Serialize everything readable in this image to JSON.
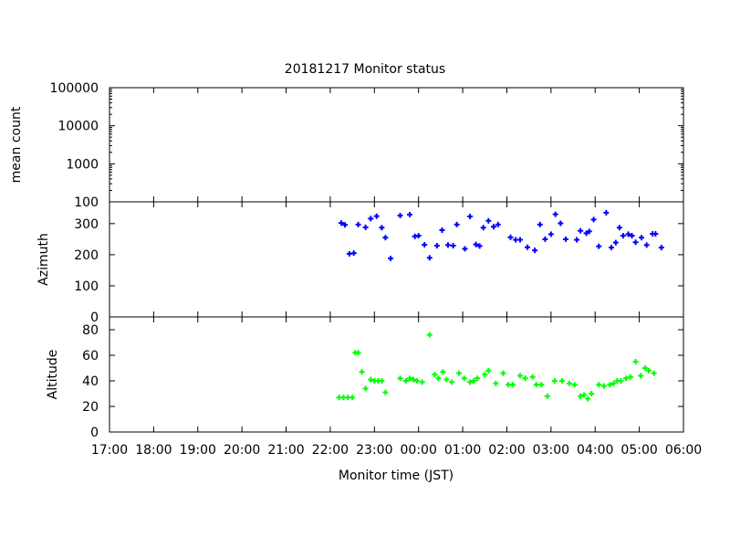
{
  "chart_data": {
    "type": "scatter",
    "title": "20181217 Monitor status",
    "xlabel": "Monitor time (JST)",
    "x_axis": {
      "range": [
        "17:00",
        "06:00"
      ],
      "tick_labels": [
        "17:00",
        "18:00",
        "19:00",
        "20:00",
        "21:00",
        "22:00",
        "23:00",
        "00:00",
        "01:00",
        "02:00",
        "03:00",
        "04:00",
        "05:00",
        "06:00"
      ]
    },
    "panels": [
      {
        "id": "mean-count",
        "ylabel": "mean count",
        "y_scale": "log",
        "ylim": [
          100,
          100000
        ],
        "y_tick_labels": [
          "100",
          "1000",
          "10000",
          "100000"
        ],
        "color": "#0000ff",
        "marker": "plus",
        "points": []
      },
      {
        "id": "azimuth",
        "ylabel": "Azimuth",
        "y_scale": "linear",
        "ylim": [
          0,
          370
        ],
        "y_tick_labels": [
          "0",
          "100",
          "200",
          "300"
        ],
        "color": "#0000ff",
        "marker": "plus",
        "points": [
          [
            "22:15",
            302
          ],
          [
            "22:20",
            296
          ],
          [
            "22:26",
            203
          ],
          [
            "22:32",
            205
          ],
          [
            "22:38",
            297
          ],
          [
            "22:48",
            288
          ],
          [
            "22:55",
            316
          ],
          [
            "23:03",
            324
          ],
          [
            "23:10",
            287
          ],
          [
            "23:15",
            255
          ],
          [
            "23:22",
            188
          ],
          [
            "23:35",
            326
          ],
          [
            "23:48",
            329
          ],
          [
            "23:55",
            259
          ],
          [
            "00:00",
            261
          ],
          [
            "00:08",
            232
          ],
          [
            "00:15",
            190
          ],
          [
            "00:25",
            229
          ],
          [
            "00:32",
            279
          ],
          [
            "00:40",
            231
          ],
          [
            "00:47",
            229
          ],
          [
            "00:52",
            297
          ],
          [
            "01:03",
            219
          ],
          [
            "01:10",
            323
          ],
          [
            "01:18",
            233
          ],
          [
            "01:23",
            228
          ],
          [
            "01:28",
            287
          ],
          [
            "01:35",
            309
          ],
          [
            "01:42",
            290
          ],
          [
            "01:48",
            297
          ],
          [
            "02:05",
            256
          ],
          [
            "02:12",
            248
          ],
          [
            "02:18",
            248
          ],
          [
            "02:28",
            224
          ],
          [
            "02:38",
            214
          ],
          [
            "02:45",
            297
          ],
          [
            "02:52",
            250
          ],
          [
            "03:00",
            266
          ],
          [
            "03:06",
            330
          ],
          [
            "03:13",
            301
          ],
          [
            "03:20",
            250
          ],
          [
            "03:35",
            248
          ],
          [
            "03:40",
            277
          ],
          [
            "03:48",
            269
          ],
          [
            "03:52",
            275
          ],
          [
            "03:58",
            313
          ],
          [
            "04:05",
            227
          ],
          [
            "04:15",
            335
          ],
          [
            "04:22",
            223
          ],
          [
            "04:28",
            239
          ],
          [
            "04:33",
            287
          ],
          [
            "04:38",
            261
          ],
          [
            "04:45",
            266
          ],
          [
            "04:50",
            261
          ],
          [
            "04:55",
            240
          ],
          [
            "05:03",
            255
          ],
          [
            "05:10",
            231
          ],
          [
            "05:18",
            267
          ],
          [
            "05:22",
            267
          ],
          [
            "05:30",
            223
          ]
        ]
      },
      {
        "id": "altitude",
        "ylabel": "Altitude",
        "y_scale": "linear",
        "ylim": [
          0,
          90
        ],
        "y_tick_labels": [
          "0",
          "20",
          "40",
          "60",
          "80"
        ],
        "color": "#00ff00",
        "marker": "plus",
        "points": [
          [
            "22:12",
            27
          ],
          [
            "22:18",
            27
          ],
          [
            "22:24",
            27
          ],
          [
            "22:30",
            27
          ],
          [
            "22:34",
            62
          ],
          [
            "22:38",
            62
          ],
          [
            "22:43",
            47
          ],
          [
            "22:48",
            34
          ],
          [
            "22:55",
            41
          ],
          [
            "23:00",
            40
          ],
          [
            "23:05",
            40
          ],
          [
            "23:10",
            40
          ],
          [
            "23:15",
            31
          ],
          [
            "23:35",
            42
          ],
          [
            "23:43",
            40
          ],
          [
            "23:48",
            42
          ],
          [
            "23:53",
            41
          ],
          [
            "23:58",
            40
          ],
          [
            "00:05",
            39
          ],
          [
            "00:15",
            76
          ],
          [
            "00:22",
            45
          ],
          [
            "00:27",
            42
          ],
          [
            "00:33",
            47
          ],
          [
            "00:38",
            41
          ],
          [
            "00:45",
            39
          ],
          [
            "00:55",
            46
          ],
          [
            "01:02",
            42
          ],
          [
            "01:10",
            39
          ],
          [
            "01:15",
            40
          ],
          [
            "01:20",
            42
          ],
          [
            "01:30",
            45
          ],
          [
            "01:35",
            48
          ],
          [
            "01:45",
            38
          ],
          [
            "01:55",
            46
          ],
          [
            "02:02",
            37
          ],
          [
            "02:08",
            37
          ],
          [
            "02:18",
            44
          ],
          [
            "02:25",
            42
          ],
          [
            "02:35",
            43
          ],
          [
            "02:40",
            37
          ],
          [
            "02:47",
            37
          ],
          [
            "02:55",
            28
          ],
          [
            "03:05",
            40
          ],
          [
            "03:15",
            40
          ],
          [
            "03:25",
            38
          ],
          [
            "03:32",
            37
          ],
          [
            "03:40",
            28
          ],
          [
            "03:45",
            29
          ],
          [
            "03:50",
            26
          ],
          [
            "03:55",
            30
          ],
          [
            "04:05",
            37
          ],
          [
            "04:12",
            36
          ],
          [
            "04:20",
            37
          ],
          [
            "04:25",
            38
          ],
          [
            "04:30",
            40
          ],
          [
            "04:35",
            40
          ],
          [
            "04:42",
            42
          ],
          [
            "04:48",
            43
          ],
          [
            "04:55",
            55
          ],
          [
            "05:02",
            44
          ],
          [
            "05:08",
            50
          ],
          [
            "05:13",
            48
          ],
          [
            "05:20",
            46
          ]
        ]
      }
    ]
  }
}
